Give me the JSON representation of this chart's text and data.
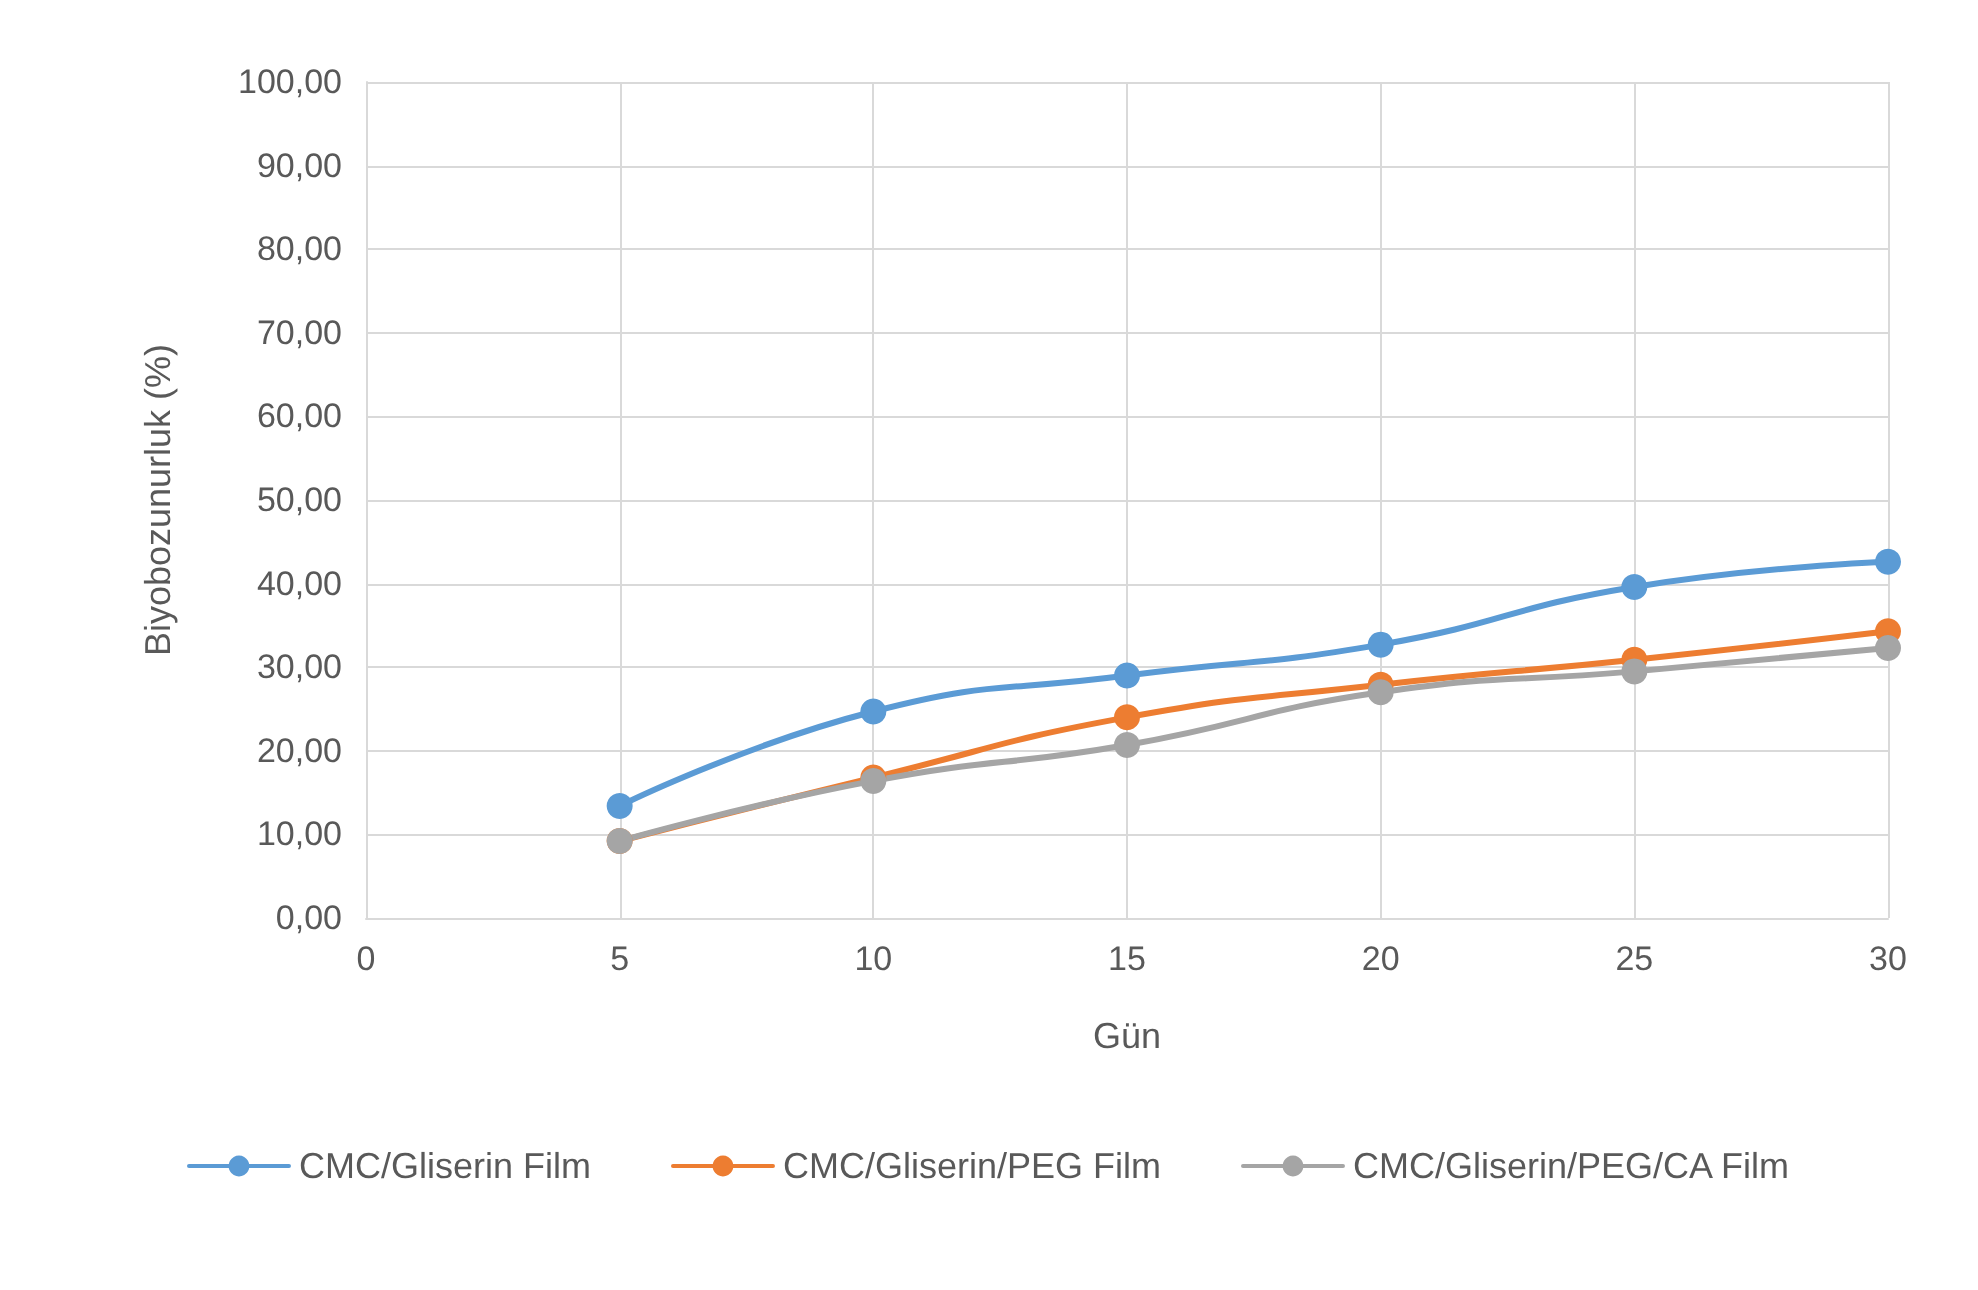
{
  "chart_data": {
    "type": "line",
    "xlabel": "Gün",
    "ylabel": "Biyobozunurluk (%)",
    "x": [
      5,
      10,
      15,
      20,
      25,
      30
    ],
    "series": [
      {
        "name": "CMC/Gliserin Film",
        "color": "#5b9bd5",
        "values": [
          13.4,
          24.7,
          29.0,
          32.7,
          39.6,
          42.6
        ]
      },
      {
        "name": "CMC/Gliserin/PEG Film",
        "color": "#ed7d31",
        "values": [
          9.2,
          16.8,
          24.0,
          27.9,
          30.9,
          34.3
        ]
      },
      {
        "name": "CMC/Gliserin/PEG/CA Film",
        "color": "#a5a5a5",
        "values": [
          9.2,
          16.4,
          20.7,
          27.0,
          29.5,
          32.3
        ]
      }
    ],
    "xlim": [
      0,
      30
    ],
    "xticks": [
      0,
      5,
      10,
      15,
      20,
      25,
      30
    ],
    "ylim": [
      0,
      100
    ],
    "yticks": [
      {
        "value": 0,
        "label": "0,00"
      },
      {
        "value": 10,
        "label": "10,00"
      },
      {
        "value": 20,
        "label": "20,00"
      },
      {
        "value": 30,
        "label": "30,00"
      },
      {
        "value": 40,
        "label": "40,00"
      },
      {
        "value": 50,
        "label": "50,00"
      },
      {
        "value": 60,
        "label": "60,00"
      },
      {
        "value": 70,
        "label": "70,00"
      },
      {
        "value": 80,
        "label": "80,00"
      },
      {
        "value": 90,
        "label": "90,00"
      },
      {
        "value": 100,
        "label": "100,00"
      }
    ],
    "grid": true,
    "legend": "bottom",
    "marker": "circle",
    "line_style": "solid"
  }
}
